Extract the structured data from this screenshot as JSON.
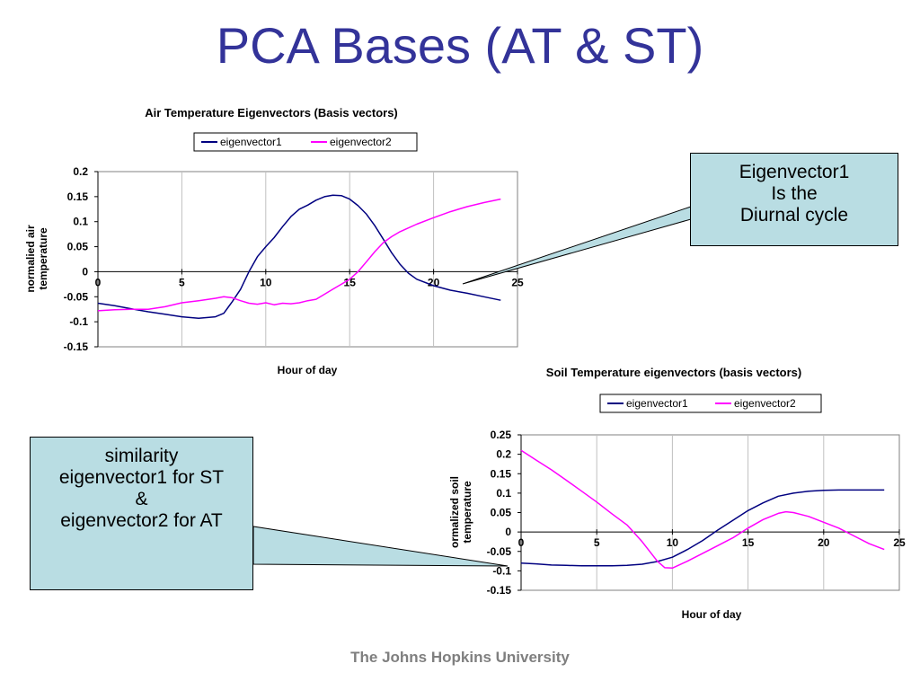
{
  "slide": {
    "title": "PCA Bases (AT & ST)",
    "footer": "The Johns Hopkins University"
  },
  "callouts": [
    {
      "lines": [
        "Eigenvector1",
        "Is the",
        "Diurnal cycle"
      ]
    },
    {
      "lines": [
        "similarity",
        "eigenvector1 for ST",
        "&",
        "eigenvector2 for AT"
      ]
    }
  ],
  "colors": {
    "eigenvector1": "#000080",
    "eigenvector2": "#ff00ff",
    "callout_fill": "#b9dde3"
  },
  "chart_data": [
    {
      "type": "line",
      "title": "Air Temperature Eigenvectors (Basis vectors)",
      "xlabel": "Hour of day",
      "ylabel": [
        "normalied air",
        "temperature"
      ],
      "xlim": [
        0,
        25
      ],
      "ylim": [
        -0.15,
        0.2
      ],
      "xticks": [
        "0",
        "5",
        "10",
        "15",
        "20",
        "25"
      ],
      "yticks": [
        "0.2",
        "0.15",
        "0.1",
        "0.05",
        "0",
        "-0.05",
        "-0.1",
        "-0.15"
      ],
      "grid": true,
      "legend": "top",
      "series": [
        {
          "name": "eigenvector1",
          "color": "#000080",
          "x": [
            0,
            1,
            2,
            3,
            4,
            5,
            6,
            7,
            7.5,
            8,
            8.5,
            9,
            9.5,
            10,
            10.5,
            11,
            11.5,
            12,
            12.5,
            13,
            13.5,
            14,
            14.5,
            15,
            15.5,
            16,
            16.5,
            17,
            17.5,
            18,
            18.5,
            19,
            20,
            21,
            22,
            23,
            24
          ],
          "y": [
            -0.063,
            -0.068,
            -0.074,
            -0.08,
            -0.085,
            -0.09,
            -0.093,
            -0.09,
            -0.083,
            -0.06,
            -0.035,
            0.0,
            0.03,
            0.05,
            0.068,
            0.09,
            0.11,
            0.125,
            0.133,
            0.143,
            0.15,
            0.153,
            0.152,
            0.145,
            0.132,
            0.115,
            0.092,
            0.065,
            0.038,
            0.015,
            -0.003,
            -0.015,
            -0.028,
            -0.037,
            -0.043,
            -0.05,
            -0.057
          ]
        },
        {
          "name": "eigenvector2",
          "color": "#ff00ff",
          "x": [
            0,
            1,
            2,
            3,
            4,
            5,
            6,
            7,
            7.5,
            8,
            8.5,
            9,
            9.5,
            10,
            10.5,
            11,
            11.5,
            12,
            12.5,
            13,
            13.5,
            14,
            14.5,
            15,
            15.5,
            16,
            16.5,
            17,
            17.5,
            18,
            19,
            20,
            21,
            22,
            23,
            24
          ],
          "y": [
            -0.078,
            -0.076,
            -0.075,
            -0.075,
            -0.07,
            -0.062,
            -0.058,
            -0.053,
            -0.05,
            -0.052,
            -0.058,
            -0.063,
            -0.065,
            -0.062,
            -0.066,
            -0.063,
            -0.064,
            -0.062,
            -0.058,
            -0.055,
            -0.045,
            -0.035,
            -0.025,
            -0.015,
            0.0,
            0.02,
            0.04,
            0.058,
            0.07,
            0.08,
            0.095,
            0.108,
            0.12,
            0.13,
            0.138,
            0.145
          ]
        }
      ]
    },
    {
      "type": "line",
      "title": "Soil Temperature eigenvectors (basis vectors)",
      "xlabel": "Hour of day",
      "ylabel": [
        "ormalized soil",
        "temperature"
      ],
      "xlim": [
        0,
        25
      ],
      "ylim": [
        -0.15,
        0.25
      ],
      "xticks": [
        "0",
        "5",
        "10",
        "15",
        "20",
        "25"
      ],
      "yticks": [
        "0.25",
        "0.2",
        "0.15",
        "0.1",
        "0.05",
        "0",
        "-0.05",
        "-0.1",
        "-0.15"
      ],
      "grid": true,
      "legend": "top",
      "series": [
        {
          "name": "eigenvector1",
          "color": "#000080",
          "x": [
            0,
            1,
            2,
            3,
            4,
            5,
            6,
            7,
            8,
            9,
            10,
            11,
            12,
            13,
            14,
            15,
            16,
            17,
            18,
            19,
            20,
            21,
            22,
            23,
            24
          ],
          "y": [
            -0.08,
            -0.082,
            -0.085,
            -0.086,
            -0.087,
            -0.087,
            -0.087,
            -0.086,
            -0.083,
            -0.076,
            -0.065,
            -0.045,
            -0.022,
            0.005,
            0.03,
            0.055,
            0.075,
            0.092,
            0.1,
            0.105,
            0.107,
            0.108,
            0.108,
            0.108,
            0.108
          ]
        },
        {
          "name": "eigenvector2",
          "color": "#ff00ff",
          "x": [
            0,
            1,
            2,
            3,
            4,
            5,
            6,
            7,
            8,
            9,
            9.5,
            10,
            11,
            12,
            13,
            14,
            15,
            16,
            17,
            17.5,
            18,
            19,
            20,
            21,
            22,
            23,
            24
          ],
          "y": [
            0.21,
            0.185,
            0.16,
            0.133,
            0.105,
            0.077,
            0.047,
            0.018,
            -0.025,
            -0.075,
            -0.092,
            -0.093,
            -0.075,
            -0.055,
            -0.035,
            -0.015,
            0.01,
            0.032,
            0.048,
            0.052,
            0.05,
            0.04,
            0.025,
            0.01,
            -0.01,
            -0.03,
            -0.045
          ]
        }
      ]
    }
  ]
}
